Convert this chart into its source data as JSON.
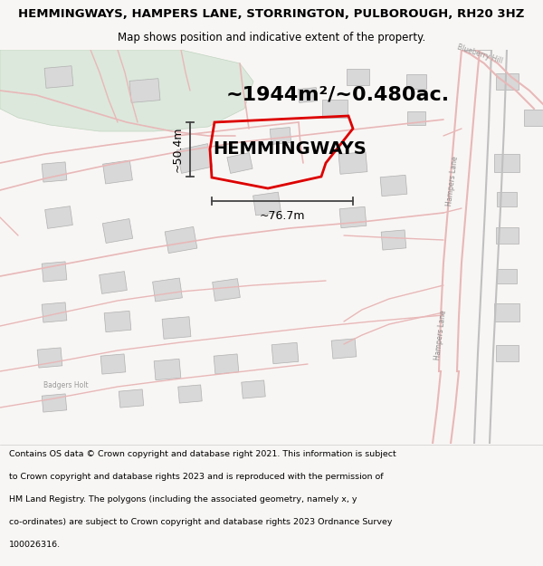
{
  "title_line1": "HEMMINGWAYS, HAMPERS LANE, STORRINGTON, PULBOROUGH, RH20 3HZ",
  "title_line2": "Map shows position and indicative extent of the property.",
  "property_label": "HEMMINGWAYS",
  "area_label": "~1944m²/~0.480ac.",
  "width_label": "~76.7m",
  "height_label": "~50.4m",
  "footer_lines": [
    "Contains OS data © Crown copyright and database right 2021. This information is subject",
    "to Crown copyright and database rights 2023 and is reproduced with the permission of",
    "HM Land Registry. The polygons (including the associated geometry, namely x, y",
    "co-ordinates) are subject to Crown copyright and database rights 2023 Ordnance Survey",
    "100026316."
  ],
  "map_bg": "#f8f6f4",
  "road_color": "#e8b8b8",
  "road_edge_color": "#d09090",
  "green_color": "#dce8dc",
  "building_color": "#d8d8d8",
  "building_edge": "#b0b0b0",
  "plot_color": "#dd0000",
  "dim_color": "#444444",
  "title_bg": "#e4e4e4",
  "footer_bg": "#ffffff",
  "hampers_lane_color": "#b8b8b8",
  "title_fontsize": 9.5,
  "subtitle_fontsize": 8.5,
  "area_fontsize": 16,
  "label_fontsize": 14,
  "dim_fontsize": 9,
  "footer_fontsize": 6.8
}
